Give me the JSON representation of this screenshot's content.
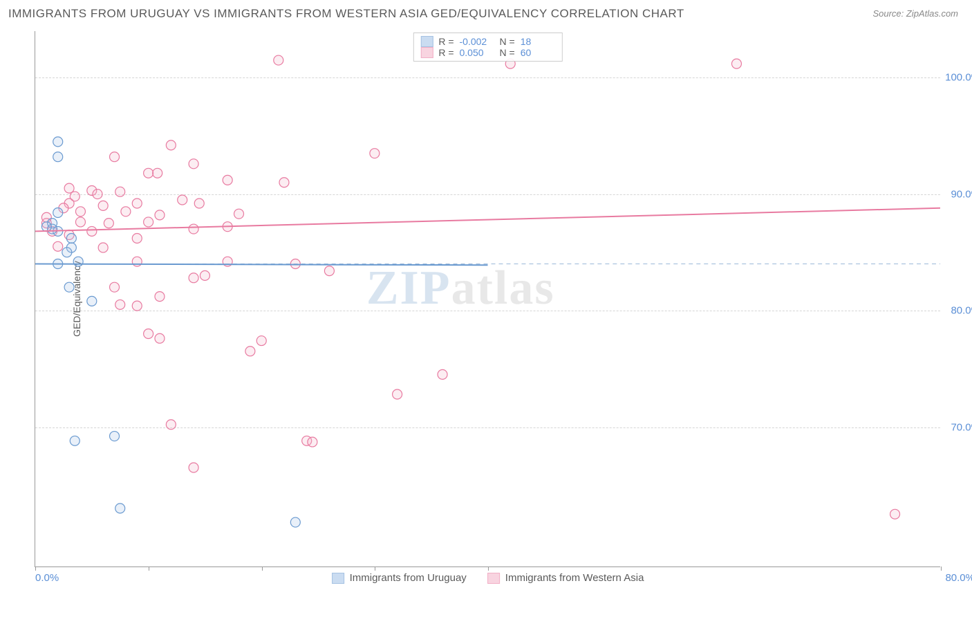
{
  "title": "IMMIGRANTS FROM URUGUAY VS IMMIGRANTS FROM WESTERN ASIA GED/EQUIVALENCY CORRELATION CHART",
  "source": "Source: ZipAtlas.com",
  "ylabel": "GED/Equivalency",
  "watermark_zip": "ZIP",
  "watermark_atlas": "atlas",
  "chart": {
    "type": "scatter",
    "background_color": "#ffffff",
    "grid_color": "#d5d5d5",
    "axis_color": "#999999",
    "tick_label_color": "#5b8fd6",
    "label_fontsize": 14,
    "tick_fontsize": 15,
    "title_fontsize": 17,
    "xlim": [
      0,
      80
    ],
    "ylim": [
      58,
      104
    ],
    "y_gridlines": [
      70,
      80,
      90,
      100
    ],
    "y_tick_labels": [
      "70.0%",
      "80.0%",
      "90.0%",
      "100.0%"
    ],
    "x_tick_positions": [
      0,
      10,
      20,
      30,
      40,
      80
    ],
    "x_tick_labels": {
      "0": "0.0%",
      "80": "80.0%"
    },
    "dashed_hline_y": 84,
    "dashed_hline_color": "#9bb8d8",
    "marker_radius": 7,
    "marker_stroke_width": 1.2,
    "marker_fill_opacity": 0.25,
    "series": [
      {
        "id": "uruguay",
        "label": "Immigrants from Uruguay",
        "color_stroke": "#6a9ad0",
        "color_fill": "#a8c5e8",
        "R": "-0.002",
        "N": "18",
        "trend": {
          "x1": 0,
          "y1": 84,
          "x2": 40,
          "y2": 83.9,
          "width": 2
        },
        "points": [
          [
            2,
            94.5
          ],
          [
            2,
            93.2
          ],
          [
            2,
            88.4
          ],
          [
            1.5,
            87.5
          ],
          [
            2,
            86.8
          ],
          [
            3.2,
            86.2
          ],
          [
            3.2,
            85.4
          ],
          [
            1.5,
            87.0
          ],
          [
            1,
            87.2
          ],
          [
            2.8,
            85.0
          ],
          [
            3.8,
            84.2
          ],
          [
            2,
            84.0
          ],
          [
            3,
            82.0
          ],
          [
            5,
            80.8
          ],
          [
            3.5,
            68.8
          ],
          [
            7,
            69.2
          ],
          [
            7.5,
            63.0
          ],
          [
            23,
            61.8
          ]
        ]
      },
      {
        "id": "western_asia",
        "label": "Immigrants from Western Asia",
        "color_stroke": "#e87aa0",
        "color_fill": "#f5b8cc",
        "R": "0.050",
        "N": "60",
        "trend": {
          "x1": 0,
          "y1": 86.8,
          "x2": 80,
          "y2": 88.8,
          "width": 2
        },
        "points": [
          [
            21.5,
            101.5
          ],
          [
            42,
            101.2
          ],
          [
            62,
            101.2
          ],
          [
            12,
            94.2
          ],
          [
            30,
            93.5
          ],
          [
            7,
            93.2
          ],
          [
            14,
            92.6
          ],
          [
            10,
            91.8
          ],
          [
            10.8,
            91.8
          ],
          [
            17,
            91.2
          ],
          [
            22,
            91.0
          ],
          [
            3,
            90.5
          ],
          [
            5,
            90.3
          ],
          [
            7.5,
            90.2
          ],
          [
            3.5,
            89.8
          ],
          [
            5.5,
            90.0
          ],
          [
            3,
            89.2
          ],
          [
            6,
            89.0
          ],
          [
            9,
            89.2
          ],
          [
            13,
            89.5
          ],
          [
            14.5,
            89.2
          ],
          [
            4,
            88.5
          ],
          [
            8,
            88.5
          ],
          [
            11,
            88.2
          ],
          [
            18,
            88.3
          ],
          [
            1,
            87.5
          ],
          [
            4,
            87.6
          ],
          [
            6.5,
            87.5
          ],
          [
            10,
            87.6
          ],
          [
            17,
            87.2
          ],
          [
            1.5,
            86.8
          ],
          [
            3,
            86.5
          ],
          [
            5,
            86.8
          ],
          [
            9,
            86.2
          ],
          [
            14,
            87.0
          ],
          [
            2,
            85.5
          ],
          [
            6,
            85.4
          ],
          [
            9,
            84.2
          ],
          [
            17,
            84.2
          ],
          [
            23,
            84.0
          ],
          [
            15,
            83.0
          ],
          [
            26,
            83.4
          ],
          [
            14,
            82.8
          ],
          [
            7,
            82.0
          ],
          [
            11,
            81.2
          ],
          [
            7.5,
            80.5
          ],
          [
            9,
            80.4
          ],
          [
            10,
            78.0
          ],
          [
            11,
            77.6
          ],
          [
            19,
            76.5
          ],
          [
            20,
            77.4
          ],
          [
            36,
            74.5
          ],
          [
            32,
            72.8
          ],
          [
            12,
            70.2
          ],
          [
            24,
            68.8
          ],
          [
            24.5,
            68.7
          ],
          [
            14,
            66.5
          ],
          [
            76,
            62.5
          ],
          [
            1,
            88.0
          ],
          [
            2.5,
            88.8
          ]
        ]
      }
    ],
    "legend_top": {
      "r_label": "R =",
      "n_label": "N ="
    }
  }
}
